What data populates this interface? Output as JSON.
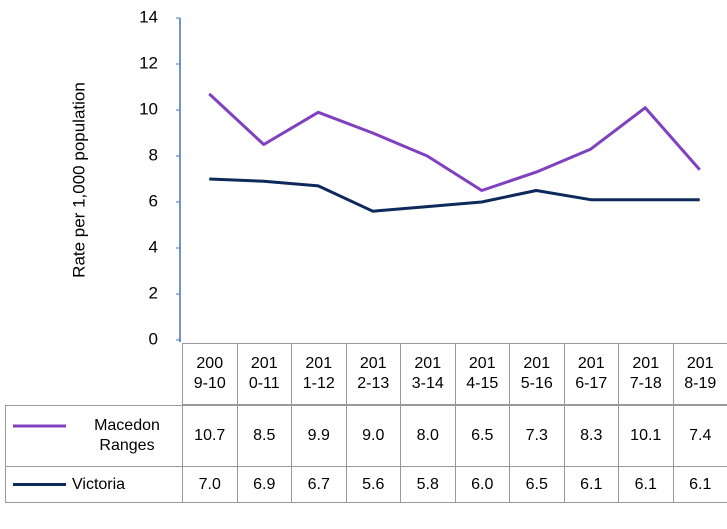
{
  "chart_data": {
    "type": "line",
    "y_label": "Rate per 1,000 population",
    "categories": [
      "2009-10",
      "2010-11",
      "2011-12",
      "2012-13",
      "2013-14",
      "2014-15",
      "2015-16",
      "2016-17",
      "2017-18",
      "2018-19"
    ],
    "series": [
      {
        "name": "Macedon Ranges",
        "color": "#8040c0",
        "values": [
          10.7,
          8.5,
          9.9,
          9.0,
          8.0,
          6.5,
          7.3,
          8.3,
          10.1,
          7.4
        ],
        "value_labels": [
          "10.7",
          "8.5",
          "9.9",
          "9.0",
          "8.0",
          "6.5",
          "7.3",
          "8.3",
          "10.1",
          "7.4"
        ]
      },
      {
        "name": "Victoria",
        "color": "#0d2a5a",
        "values": [
          7.0,
          6.9,
          6.7,
          5.6,
          5.8,
          6.0,
          6.5,
          6.1,
          6.1,
          6.1
        ],
        "value_labels": [
          "7.0",
          "6.9",
          "6.7",
          "5.6",
          "5.8",
          "6.0",
          "6.5",
          "6.1",
          "6.1",
          "6.1"
        ]
      }
    ],
    "ylim": [
      0,
      14
    ],
    "yticks": [
      0,
      2,
      4,
      6,
      8,
      10,
      12,
      14
    ],
    "grid": false
  }
}
